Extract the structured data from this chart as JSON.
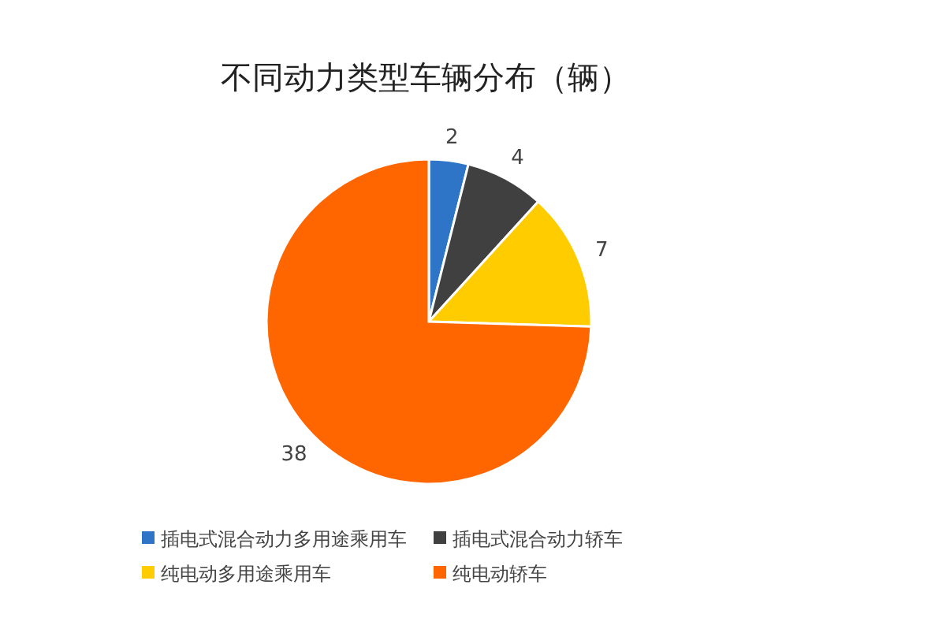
{
  "chart_data": {
    "type": "pie",
    "title": "不同动力类型车辆分布（辆）",
    "categories": [
      "插电式混合动力多用途乘用车",
      "插电式混合动力轿车",
      "纯电动多用途乘用车",
      "纯电动轿车"
    ],
    "values": [
      2,
      4,
      7,
      38
    ],
    "colors": [
      "#2e75c8",
      "#404040",
      "#ffcc00",
      "#ff6600"
    ],
    "data_labels": true,
    "legend": "bottom"
  }
}
